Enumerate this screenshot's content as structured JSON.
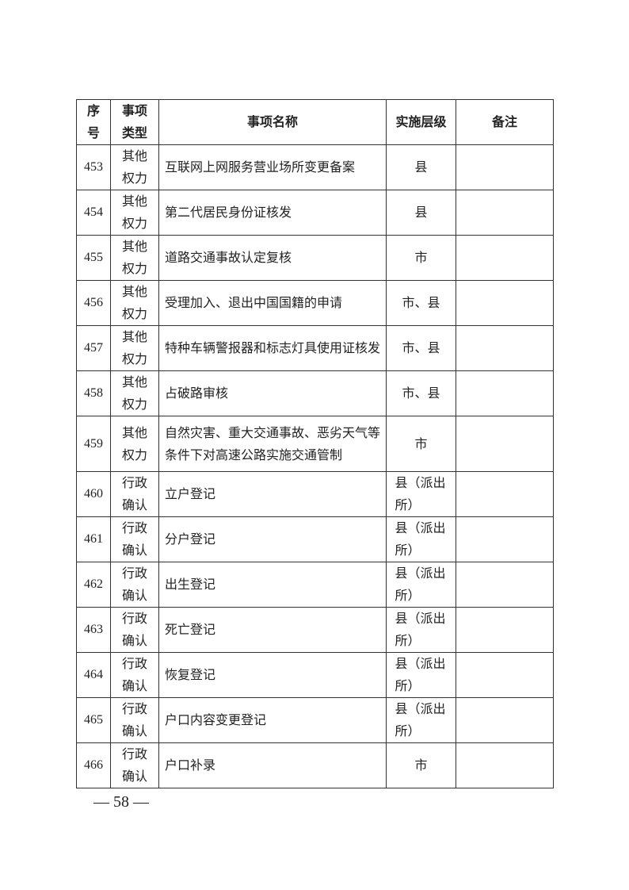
{
  "table": {
    "headers": {
      "seq": "序号",
      "type": "事项类型",
      "name": "事项名称",
      "level": "实施层级",
      "notes": "备注"
    },
    "rows": [
      {
        "seq": "453",
        "type": "其他权力",
        "name": "互联网上网服务营业场所变更备案",
        "level": "县",
        "notes": ""
      },
      {
        "seq": "454",
        "type": "其他权力",
        "name": "第二代居民身份证核发",
        "level": "县",
        "notes": ""
      },
      {
        "seq": "455",
        "type": "其他权力",
        "name": "道路交通事故认定复核",
        "level": "市",
        "notes": ""
      },
      {
        "seq": "456",
        "type": "其他权力",
        "name": "受理加入、退出中国国籍的申请",
        "level": "市、县",
        "notes": ""
      },
      {
        "seq": "457",
        "type": "其他权力",
        "name": "特种车辆警报器和标志灯具使用证核发",
        "level": "市、县",
        "notes": ""
      },
      {
        "seq": "458",
        "type": "其他权力",
        "name": "占破路审核",
        "level": "市、县",
        "notes": ""
      },
      {
        "seq": "459",
        "type": "其他权力",
        "name": "自然灾害、重大交通事故、恶劣天气等条件下对高速公路实施交通管制",
        "level": "市",
        "notes": ""
      },
      {
        "seq": "460",
        "type": "行政确认",
        "name": "立户登记",
        "level": "县（派出所）",
        "notes": ""
      },
      {
        "seq": "461",
        "type": "行政确认",
        "name": "分户登记",
        "level": "县（派出所）",
        "notes": ""
      },
      {
        "seq": "462",
        "type": "行政确认",
        "name": "出生登记",
        "level": "县（派出所）",
        "notes": ""
      },
      {
        "seq": "463",
        "type": "行政确认",
        "name": "死亡登记",
        "level": "县（派出所）",
        "notes": ""
      },
      {
        "seq": "464",
        "type": "行政确认",
        "name": "恢复登记",
        "level": "县（派出所）",
        "notes": ""
      },
      {
        "seq": "465",
        "type": "行政确认",
        "name": "户口内容变更登记",
        "level": "县（派出所）",
        "notes": ""
      },
      {
        "seq": "466",
        "type": "行政确认",
        "name": "户口补录",
        "level": "市",
        "notes": ""
      }
    ]
  },
  "page_number": "— 58 —"
}
